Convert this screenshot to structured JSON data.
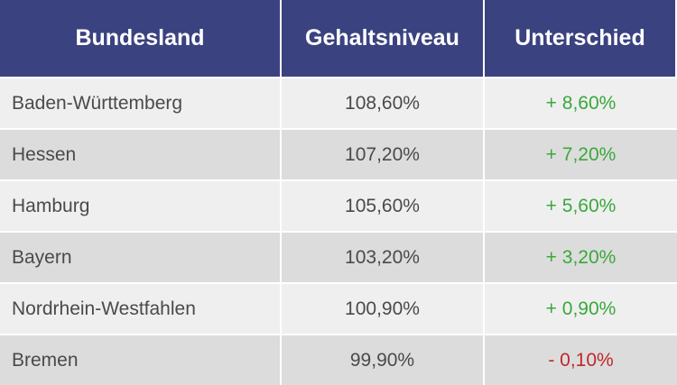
{
  "table": {
    "headers": [
      "Bundesland",
      "Gehaltsniveau",
      "Unterschied"
    ],
    "rows": [
      {
        "state": "Baden-Württemberg",
        "level": "108,60%",
        "diff": "+ 8,60%",
        "sign": "positive"
      },
      {
        "state": "Hessen",
        "level": "107,20%",
        "diff": "+ 7,20%",
        "sign": "positive"
      },
      {
        "state": "Hamburg",
        "level": "105,60%",
        "diff": "+ 5,60%",
        "sign": "positive"
      },
      {
        "state": "Bayern",
        "level": "103,20%",
        "diff": "+ 3,20%",
        "sign": "positive"
      },
      {
        "state": "Nordrhein-Westfahlen",
        "level": "100,90%",
        "diff": "+ 0,90%",
        "sign": "positive"
      },
      {
        "state": "Bremen",
        "level": "99,90%",
        "diff": "- 0,10%",
        "sign": "negative"
      }
    ]
  },
  "colors": {
    "header_bg": "#3a4280",
    "positive": "#3aa83a",
    "negative": "#c0282a"
  }
}
